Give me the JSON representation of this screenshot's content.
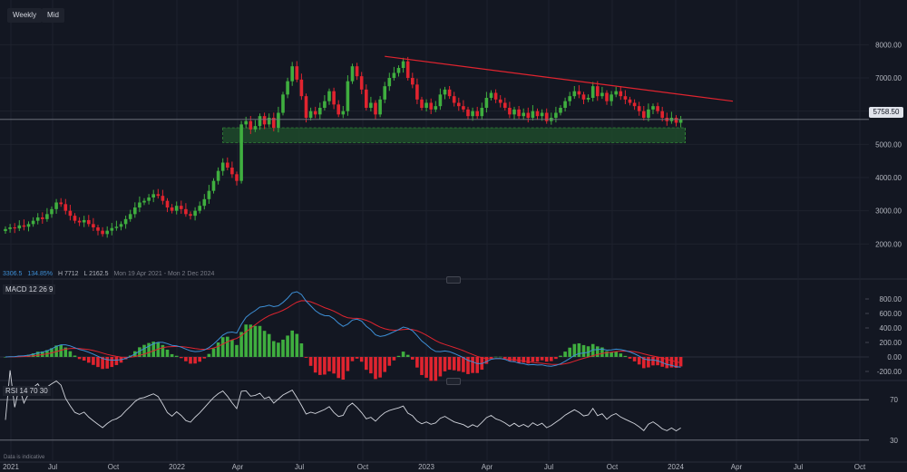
{
  "toolbar": {
    "timeframe_label": "Weekly",
    "mid_label": "Mid"
  },
  "stats": {
    "change": "3306.5",
    "change_pct": "134.85%",
    "high": "H 7712",
    "low": "L 2162.5",
    "range": "Mon 19 Apr 2021 - Mon 2 Dec 2024"
  },
  "price_tag": "5758.50",
  "macd_label": "MACD  12  26  9",
  "rsi_label": "RSI  14  70  30",
  "footnote": "Data is indicative",
  "colors": {
    "up": "#3fae3f",
    "down": "#e0242f",
    "trend": "#e0242f",
    "zone": "#1f4a2a",
    "macd": "#3d8fd6",
    "signal": "#e0242f",
    "rsi": "#d1d4dc",
    "background": "#131722"
  },
  "chart_data": [
    {
      "type": "candlestick",
      "x_ticks": [
        "2021",
        "Jul",
        "Oct",
        "2022",
        "Apr",
        "Jul",
        "Oct",
        "2023",
        "Apr",
        "Jul",
        "Oct",
        "2024",
        "Apr",
        "Jul",
        "Oct"
      ],
      "y_ticks": [
        "8000.00",
        "7000.00",
        "6000.00",
        "5000.00",
        "4000.00",
        "3000.00",
        "2000.00"
      ],
      "ylim": [
        1000,
        8800
      ],
      "closes": [
        2450,
        2500,
        2470,
        2560,
        2520,
        2600,
        2700,
        2800,
        2750,
        2900,
        3050,
        3250,
        3200,
        3000,
        2850,
        2700,
        2650,
        2720,
        2600,
        2500,
        2400,
        2300,
        2400,
        2480,
        2520,
        2600,
        2750,
        2900,
        3100,
        3250,
        3300,
        3400,
        3500,
        3450,
        3300,
        3100,
        3000,
        3150,
        3050,
        2900,
        2850,
        3000,
        3150,
        3350,
        3600,
        3900,
        4200,
        4450,
        4300,
        4100,
        3900,
        5600,
        5700,
        5450,
        5550,
        5850,
        5600,
        5800,
        5500,
        5950,
        6500,
        6900,
        7350,
        6950,
        6450,
        5800,
        6000,
        5900,
        6100,
        6300,
        6600,
        6200,
        5900,
        6000,
        6900,
        7350,
        7050,
        6650,
        6100,
        6250,
        5900,
        6350,
        6750,
        7000,
        7150,
        7300,
        7500,
        7000,
        6800,
        6350,
        6100,
        6250,
        6050,
        6150,
        6500,
        6650,
        6450,
        6250,
        6150,
        6050,
        5850,
        6000,
        5850,
        6100,
        6400,
        6550,
        6350,
        6250,
        6100,
        5900,
        6050,
        5850,
        5950,
        5800,
        6000,
        5850,
        5950,
        5700,
        5800,
        5950,
        6100,
        6300,
        6450,
        6600,
        6500,
        6350,
        6400,
        6750,
        6450,
        6550,
        6300,
        6500,
        6600,
        6450,
        6350,
        6250,
        6150,
        6000,
        5800,
        6050,
        6150,
        6000,
        5800,
        5700,
        5800,
        5650,
        5750
      ]
    },
    {
      "type": "macd",
      "params": "12 26 9",
      "y_ticks": [
        "800.00",
        "600.00",
        "400.00",
        "200.00",
        "0.00",
        "-200.00"
      ],
      "ylim": [
        -300,
        950
      ]
    },
    {
      "type": "rsi",
      "params": "14 70 30",
      "levels": [
        "70",
        "30"
      ],
      "ylim": [
        20,
        80
      ]
    }
  ]
}
